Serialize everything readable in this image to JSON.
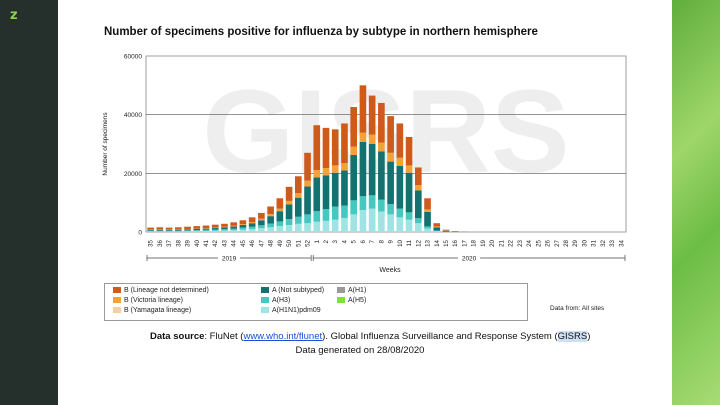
{
  "slide": {
    "logo_mark": "z"
  },
  "chart_data": {
    "type": "bar",
    "title": "Number of specimens positive for influenza by subtype in northern hemisphere",
    "xlabel": "Weeks",
    "ylabel": "Number of specimens",
    "ylim": [
      0,
      60000
    ],
    "yticks": [
      0,
      20000,
      40000,
      60000
    ],
    "watermark": "GISRS",
    "categories": [
      "35",
      "36",
      "37",
      "38",
      "39",
      "40",
      "41",
      "42",
      "43",
      "44",
      "45",
      "46",
      "47",
      "48",
      "49",
      "50",
      "51",
      "52",
      "1",
      "2",
      "3",
      "4",
      "5",
      "6",
      "7",
      "8",
      "9",
      "10",
      "11",
      "12",
      "13",
      "14",
      "15",
      "16",
      "17",
      "18",
      "19",
      "20",
      "21",
      "22",
      "23",
      "24",
      "25",
      "26",
      "27",
      "28",
      "29",
      "30",
      "31",
      "32",
      "33",
      "34"
    ],
    "year_labels": [
      {
        "label": "2019",
        "from": "35",
        "to": "52"
      },
      {
        "label": "2020",
        "from": "1",
        "to": "34"
      }
    ],
    "series": [
      {
        "name": "A(H1N1)pdm09",
        "color": "#9fe3e3",
        "values": [
          200,
          200,
          200,
          200,
          250,
          300,
          350,
          400,
          500,
          600,
          800,
          1000,
          1300,
          1600,
          2000,
          2400,
          2800,
          3000,
          3500,
          3800,
          4200,
          4800,
          6000,
          7500,
          8000,
          7000,
          6000,
          5000,
          4200,
          3000,
          1200,
          300,
          80,
          30,
          0,
          0,
          0,
          0,
          0,
          0,
          0,
          0,
          0,
          0,
          0,
          0,
          0,
          0,
          0,
          0,
          0,
          0
        ]
      },
      {
        "name": "A(H3)",
        "color": "#46c7c0",
        "values": [
          300,
          300,
          300,
          300,
          300,
          350,
          400,
          450,
          500,
          550,
          700,
          800,
          1000,
          1300,
          1600,
          2000,
          2400,
          3000,
          3600,
          4000,
          4500,
          4200,
          4800,
          4700,
          4500,
          4000,
          3500,
          3000,
          2500,
          1700,
          700,
          200,
          50,
          20,
          0,
          0,
          0,
          0,
          0,
          0,
          0,
          0,
          0,
          0,
          0,
          0,
          0,
          0,
          0,
          0,
          0,
          0
        ]
      },
      {
        "name": "A(H1)",
        "color": "#9a9a9a",
        "values": [
          0,
          0,
          0,
          0,
          0,
          0,
          0,
          0,
          0,
          0,
          0,
          0,
          0,
          0,
          0,
          0,
          0,
          0,
          0,
          0,
          0,
          0,
          0,
          0,
          0,
          0,
          0,
          0,
          0,
          0,
          0,
          0,
          0,
          0,
          0,
          0,
          0,
          0,
          0,
          0,
          0,
          0,
          0,
          0,
          0,
          0,
          0,
          0,
          0,
          0,
          0,
          0
        ]
      },
      {
        "name": "A(H5)",
        "color": "#7ee03a",
        "values": [
          0,
          0,
          0,
          0,
          0,
          0,
          0,
          0,
          0,
          0,
          0,
          0,
          0,
          0,
          0,
          0,
          0,
          0,
          0,
          0,
          0,
          0,
          0,
          0,
          0,
          0,
          0,
          0,
          0,
          0,
          0,
          0,
          0,
          0,
          0,
          0,
          0,
          0,
          0,
          0,
          0,
          0,
          0,
          0,
          0,
          0,
          0,
          0,
          0,
          0,
          0,
          0
        ]
      },
      {
        "name": "A (Not subtyped)",
        "color": "#137270",
        "values": [
          300,
          300,
          300,
          300,
          350,
          400,
          400,
          500,
          600,
          700,
          900,
          1200,
          1700,
          2500,
          3500,
          5000,
          6500,
          9500,
          11500,
          11500,
          11500,
          12000,
          15500,
          18500,
          17500,
          16500,
          14500,
          14500,
          13500,
          9500,
          5000,
          1100,
          300,
          100,
          30,
          0,
          0,
          0,
          0,
          0,
          0,
          0,
          0,
          0,
          0,
          0,
          0,
          0,
          0,
          0,
          0,
          0
        ]
      },
      {
        "name": "B (Yamagata lineage)",
        "color": "#f5cfa3",
        "values": [
          0,
          0,
          0,
          0,
          0,
          0,
          0,
          0,
          0,
          0,
          0,
          0,
          0,
          0,
          0,
          0,
          0,
          0,
          0,
          0,
          0,
          0,
          0,
          0,
          0,
          0,
          0,
          0,
          0,
          0,
          0,
          0,
          0,
          0,
          0,
          0,
          0,
          0,
          0,
          0,
          0,
          0,
          0,
          0,
          0,
          0,
          0,
          0,
          0,
          0,
          0,
          0
        ]
      },
      {
        "name": "B (Victoria lineage)",
        "color": "#f5a13a",
        "values": [
          100,
          100,
          100,
          100,
          100,
          100,
          150,
          200,
          200,
          250,
          300,
          400,
          500,
          700,
          900,
          1200,
          1600,
          2000,
          2500,
          2500,
          2500,
          2500,
          2800,
          3200,
          3200,
          3000,
          3000,
          2800,
          2500,
          1800,
          800,
          300,
          100,
          50,
          0,
          0,
          0,
          0,
          0,
          0,
          0,
          0,
          0,
          0,
          0,
          0,
          0,
          0,
          0,
          0,
          0,
          0
        ]
      },
      {
        "name": "B (Lineage not determined)",
        "color": "#cc5b1c",
        "values": [
          600,
          700,
          600,
          700,
          800,
          850,
          900,
          950,
          1000,
          1200,
          1300,
          1600,
          2000,
          2600,
          3500,
          4800,
          5700,
          9500,
          15300,
          13700,
          12300,
          13500,
          13500,
          16100,
          13300,
          13500,
          12500,
          11700,
          9700,
          6000,
          3800,
          1100,
          270,
          100,
          30,
          0,
          0,
          0,
          0,
          0,
          0,
          0,
          0,
          0,
          0,
          0,
          0,
          0,
          0,
          0,
          0,
          0
        ]
      }
    ],
    "legend_placement": "bottom-left",
    "grid": true
  },
  "legend": {
    "items": [
      {
        "label": "B (Lineage not determined)",
        "color": "#cc5b1c"
      },
      {
        "label": "B (Victoria lineage)",
        "color": "#f5a13a"
      },
      {
        "label": "B (Yamagata lineage)",
        "color": "#f5cfa3"
      },
      {
        "label": "A (Not subtyped)",
        "color": "#137270"
      },
      {
        "label": "A(H3)",
        "color": "#46c7c0"
      },
      {
        "label": "A(H1N1)pdm09",
        "color": "#9fe3e3"
      },
      {
        "label": "A(H1)",
        "color": "#9a9a9a"
      },
      {
        "label": "A(H5)",
        "color": "#7ee03a"
      }
    ],
    "data_from": "Data from: All sites"
  },
  "footer": {
    "source_label": "Data source",
    "source_text_1": ": FluNet (",
    "source_link": "www.who.int/flunet",
    "source_text_2": "). Global Influenza Surveillance and Response System (",
    "source_abbr": "GISRS",
    "source_text_3": ")",
    "generated": "Data generated on 28/08/2020"
  }
}
